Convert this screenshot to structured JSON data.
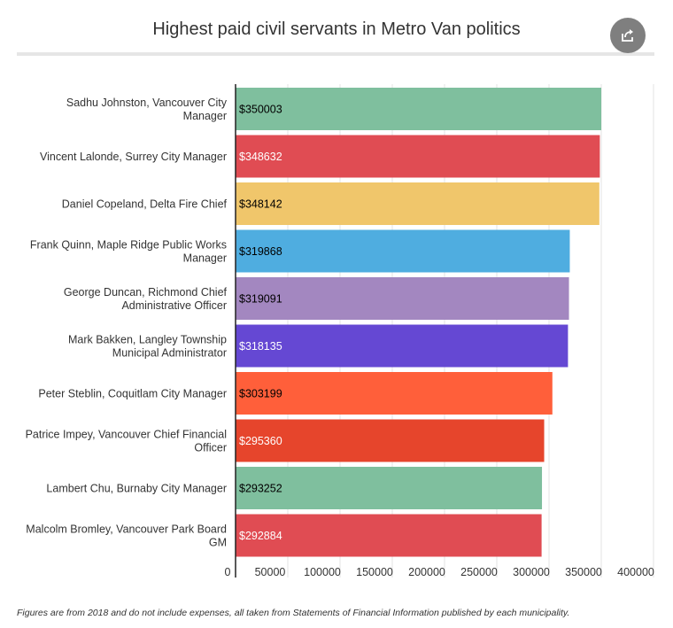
{
  "title": "Highest paid civil servants in Metro Van politics",
  "share_icon": "share-icon",
  "footnote": "Figures are from 2018 and do not include expenses, all taken from Statements of Financial Information published by each municipality.",
  "chart_data": {
    "type": "bar",
    "orientation": "horizontal",
    "title": "Highest paid civil servants in Metro Van politics",
    "xlabel": "",
    "ylabel": "",
    "xlim": [
      0,
      400000
    ],
    "xticks": [
      0,
      50000,
      100000,
      150000,
      200000,
      250000,
      300000,
      350000,
      400000
    ],
    "grid": true,
    "categories": [
      [
        "Sadhu Johnston, Vancouver City",
        "Manager"
      ],
      [
        "Vincent Lalonde, Surrey City Manager"
      ],
      [
        "Daniel Copeland, Delta Fire Chief"
      ],
      [
        "Frank Quinn, Maple Ridge Public Works",
        "Manager"
      ],
      [
        "George Duncan, Richmond Chief",
        "Administrative Officer"
      ],
      [
        "Mark Bakken, Langley Township",
        "Municipal Administrator"
      ],
      [
        "Peter Steblin, Coquitlam City Manager"
      ],
      [
        "Patrice Impey, Vancouver Chief Financial",
        "Officer"
      ],
      [
        "Lambert Chu, Burnaby City Manager"
      ],
      [
        "Malcolm Bromley, Vancouver Park Board",
        "GM"
      ]
    ],
    "values": [
      350003,
      348632,
      348142,
      319868,
      319091,
      318135,
      303199,
      295360,
      293252,
      292884
    ],
    "data_labels": [
      "$350003",
      "$348632",
      "$348142",
      "$319868",
      "$319091",
      "$318135",
      "$303199",
      "$295360",
      "$293252",
      "$292884"
    ],
    "colors": [
      "#7fbf9e",
      "#e04c53",
      "#f0c66b",
      "#4fade0",
      "#a387c0",
      "#6548d3",
      "#ff5f3a",
      "#e6452c",
      "#7fbf9e",
      "#e04c53"
    ],
    "label_colors": [
      "#000000",
      "#ffffff",
      "#000000",
      "#000000",
      "#000000",
      "#ffffff",
      "#000000",
      "#ffffff",
      "#000000",
      "#ffffff"
    ]
  }
}
